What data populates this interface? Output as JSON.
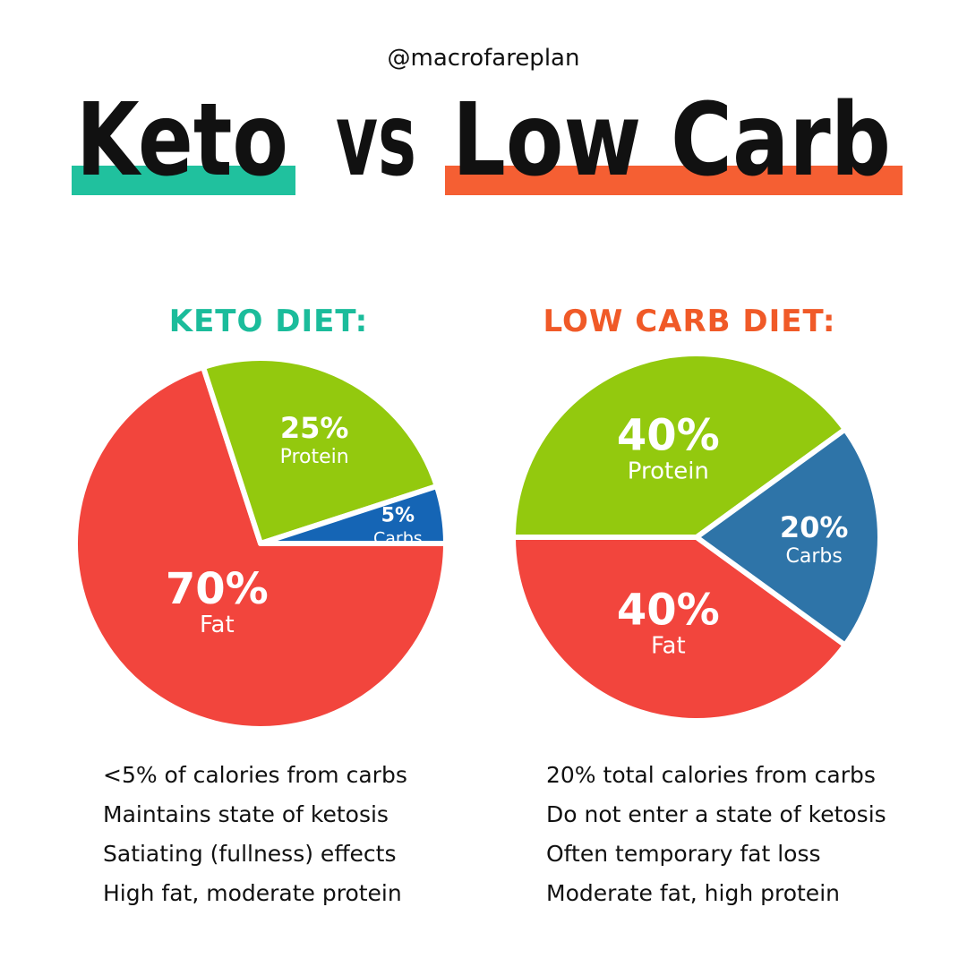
{
  "header": {
    "handle": "@macrofareplan",
    "title": [
      "Keto",
      "vs",
      "Low Carb"
    ]
  },
  "chart_data": [
    {
      "type": "pie",
      "title": "KETO DIET:",
      "categories": [
        "Fat",
        "Protein",
        "Carbs"
      ],
      "values": [
        70,
        25,
        5
      ],
      "value_labels": [
        "70%",
        "25%",
        "5%"
      ],
      "colors": [
        "#f2453d",
        "#93c90e",
        "#1565b5"
      ],
      "notes": [
        "<5% of calories from carbs",
        "Maintains state of ketosis",
        "Satiating (fullness) effects",
        "High fat, moderate protein"
      ]
    },
    {
      "type": "pie",
      "title": "LOW CARB DIET:",
      "categories": [
        "Fat",
        "Protein",
        "Carbs"
      ],
      "values": [
        40,
        40,
        20
      ],
      "value_labels": [
        "40%",
        "40%",
        "20%"
      ],
      "colors": [
        "#f2453d",
        "#93c90e",
        "#2e74a8"
      ],
      "notes": [
        "20% total calories from carbs",
        "Do not enter a state of ketosis",
        "Often temporary fat loss",
        "Moderate fat, high protein"
      ]
    }
  ]
}
